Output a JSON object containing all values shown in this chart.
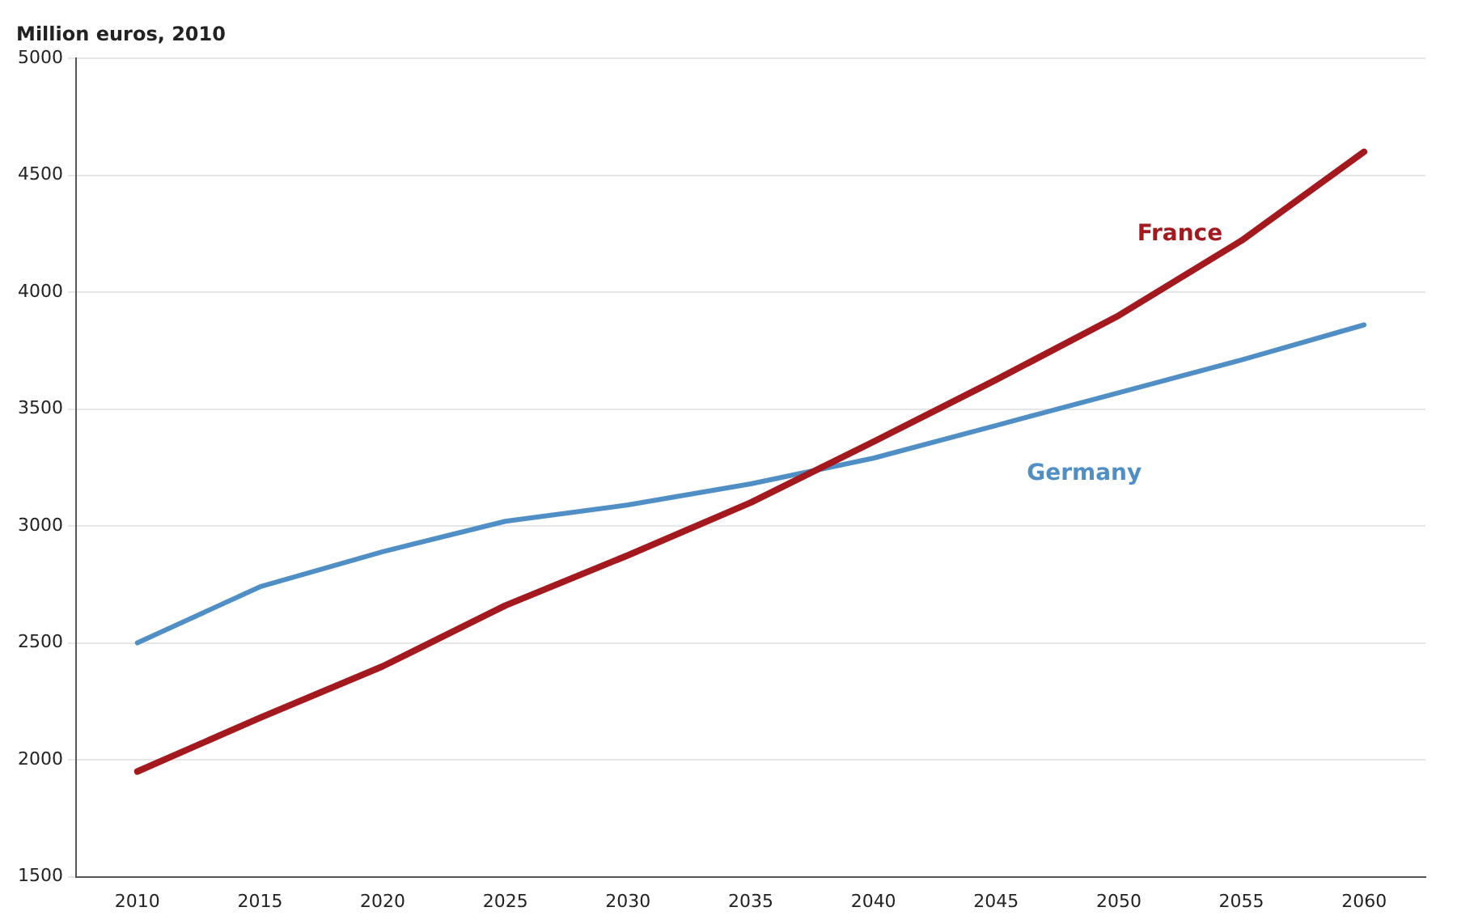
{
  "chart_data": {
    "type": "line",
    "ylabel": "Million euros, 2010",
    "categories": [
      "2010",
      "2015",
      "2020",
      "2025",
      "2030",
      "2035",
      "2040",
      "2045",
      "2050",
      "2055",
      "2060"
    ],
    "series": [
      {
        "name": "France",
        "color": "#a3191e",
        "values": [
          1950,
          2180,
          2400,
          2660,
          2875,
          3100,
          3360,
          3625,
          3900,
          4220,
          4600
        ]
      },
      {
        "name": "Germany",
        "color": "#4f8fc6",
        "values": [
          2500,
          2740,
          2890,
          3020,
          3090,
          3180,
          3290,
          3430,
          3570,
          3710,
          3860
        ]
      }
    ],
    "ylim": [
      1500,
      5000
    ],
    "yticks": [
      1500,
      2000,
      2500,
      3000,
      3500,
      4000,
      4500,
      5000
    ],
    "grid": "y",
    "legend": false,
    "marker": "none",
    "line_style": "solid"
  }
}
